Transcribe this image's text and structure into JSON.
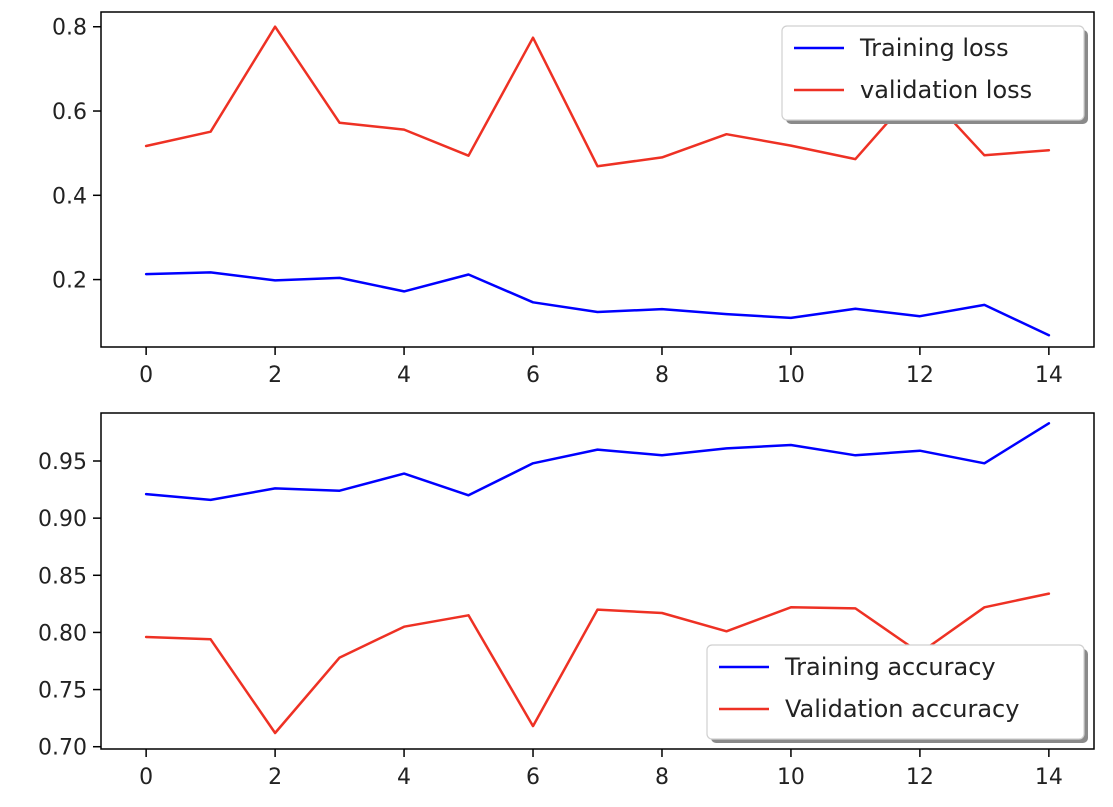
{
  "chart_data": [
    {
      "type": "line",
      "title": "",
      "xlabel": "",
      "ylabel": "",
      "x": [
        0,
        1,
        2,
        3,
        4,
        5,
        6,
        7,
        8,
        9,
        10,
        11,
        12,
        13,
        14
      ],
      "xticks": [
        0,
        2,
        4,
        6,
        8,
        10,
        12,
        14
      ],
      "xlim": [
        -0.7,
        14.7
      ],
      "yticks": [
        0.2,
        0.4,
        0.6,
        0.8
      ],
      "ytick_labels": [
        "0.2",
        "0.4",
        "0.6",
        "0.8"
      ],
      "ylim": [
        0.04,
        0.835
      ],
      "grid": false,
      "legend_position": "top-right",
      "series": [
        {
          "name": "Training loss",
          "color": "#0000ff",
          "values": [
            0.213,
            0.217,
            0.198,
            0.204,
            0.172,
            0.212,
            0.146,
            0.123,
            0.13,
            0.118,
            0.109,
            0.131,
            0.113,
            0.14,
            0.068
          ]
        },
        {
          "name": "validation loss",
          "color": "#ee3124",
          "values": [
            0.517,
            0.551,
            0.8,
            0.572,
            0.556,
            0.494,
            0.774,
            0.469,
            0.49,
            0.545,
            0.518,
            0.486,
            0.66,
            0.495,
            0.507
          ]
        }
      ]
    },
    {
      "type": "line",
      "title": "",
      "xlabel": "",
      "ylabel": "",
      "x": [
        0,
        1,
        2,
        3,
        4,
        5,
        6,
        7,
        8,
        9,
        10,
        11,
        12,
        13,
        14
      ],
      "xticks": [
        0,
        2,
        4,
        6,
        8,
        10,
        12,
        14
      ],
      "xlim": [
        -0.7,
        14.7
      ],
      "yticks": [
        0.7,
        0.75,
        0.8,
        0.85,
        0.9,
        0.95
      ],
      "ytick_labels": [
        "0.70",
        "0.75",
        "0.80",
        "0.85",
        "0.90",
        "0.95"
      ],
      "ylim": [
        0.698,
        0.992
      ],
      "grid": false,
      "legend_position": "bottom-right",
      "series": [
        {
          "name": "Training accuracy",
          "color": "#0000ff",
          "values": [
            0.921,
            0.916,
            0.926,
            0.924,
            0.939,
            0.92,
            0.948,
            0.96,
            0.955,
            0.961,
            0.964,
            0.955,
            0.959,
            0.948,
            0.983
          ]
        },
        {
          "name": "Validation accuracy",
          "color": "#ee3124",
          "values": [
            0.796,
            0.794,
            0.712,
            0.778,
            0.805,
            0.815,
            0.718,
            0.82,
            0.817,
            0.801,
            0.822,
            0.821,
            0.782,
            0.822,
            0.834
          ]
        }
      ]
    }
  ]
}
